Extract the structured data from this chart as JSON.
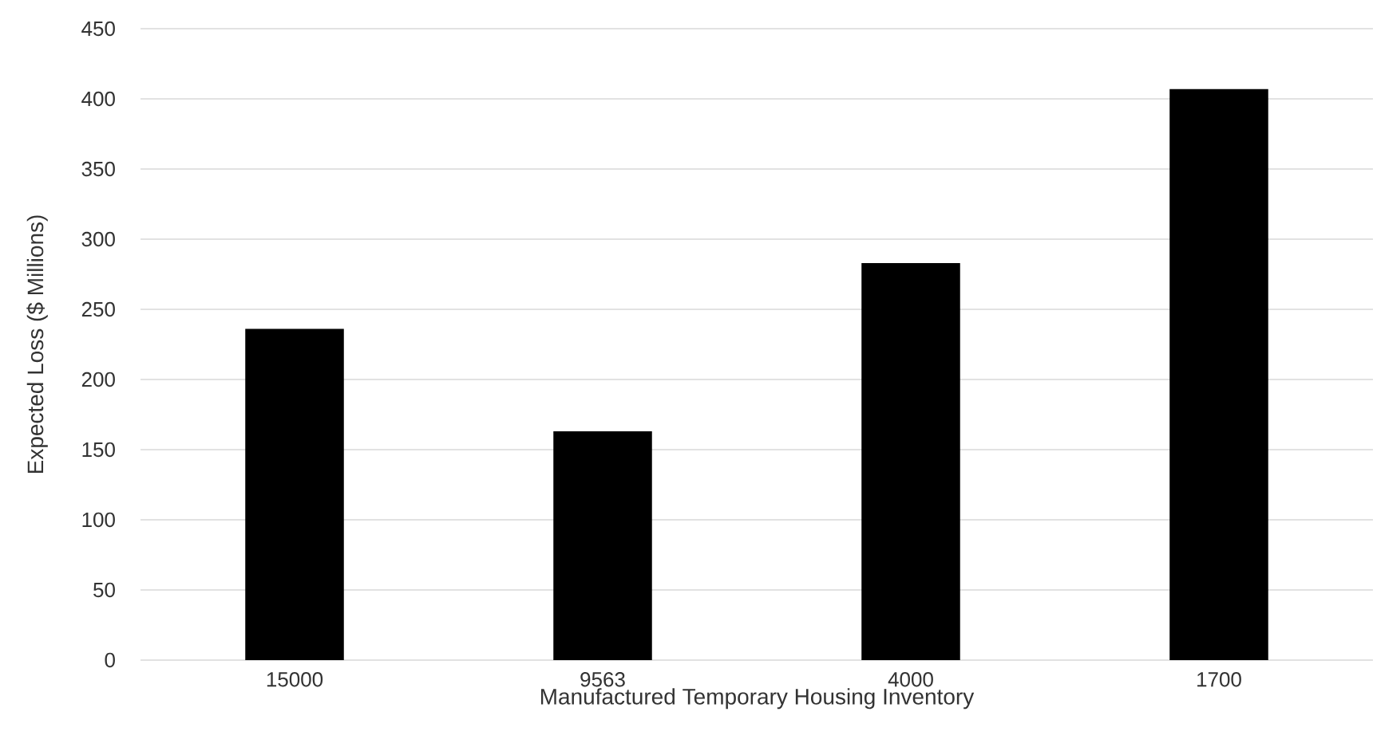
{
  "chart_data": {
    "type": "bar",
    "xlabel": "Manufactured Temporary Housing Inventory",
    "ylabel": "Expected Loss ($ Millions)",
    "categories": [
      "15000",
      "9563",
      "4000",
      "1700"
    ],
    "values": [
      236,
      163,
      283,
      407
    ],
    "color": "#000000",
    "ylim": [
      0,
      450
    ],
    "yticks": [
      0,
      50,
      100,
      150,
      200,
      250,
      300,
      350,
      400,
      450
    ],
    "grid": "y"
  }
}
